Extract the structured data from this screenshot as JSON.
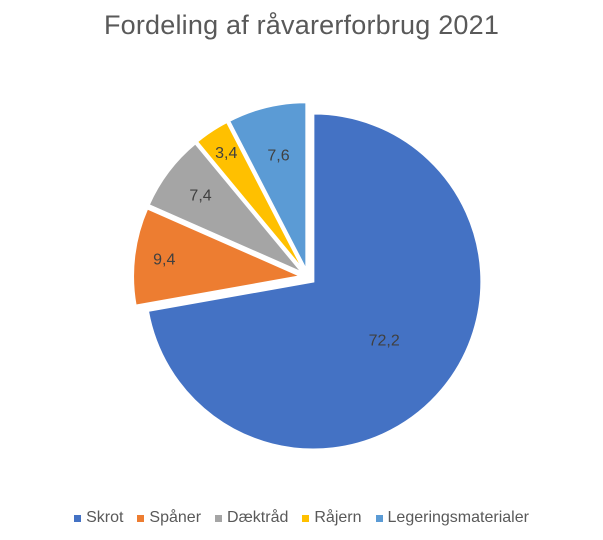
{
  "chart_data": {
    "type": "pie",
    "title": "Fordeling af råvarerforbrug 2021",
    "categories": [
      "Skrot",
      "Spåner",
      "Dæktråd",
      "Råjern",
      "Legeringsmaterialer"
    ],
    "values": [
      72.2,
      9.4,
      7.4,
      3.4,
      7.6
    ],
    "data_labels": [
      "72,2",
      "9,4",
      "7,4",
      "3,4",
      "7,6"
    ],
    "colors": [
      "#4472C4",
      "#ED7D31",
      "#A5A5A5",
      "#FFC000",
      "#5B9BD5"
    ],
    "start_angle_deg": 0,
    "direction": "clockwise",
    "exploded": true,
    "legend_position": "bottom"
  }
}
